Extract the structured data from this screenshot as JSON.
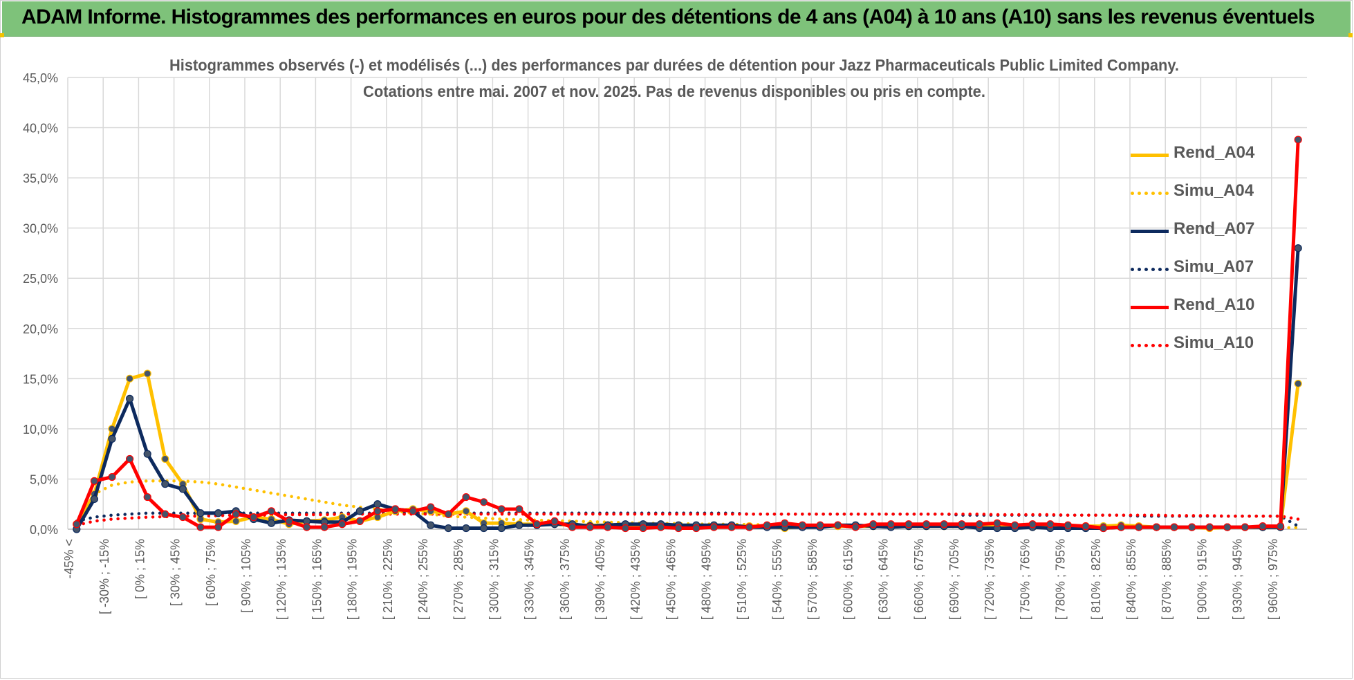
{
  "banner": {
    "title": "ADAM Informe. Histogrammes des performances en euros pour des détentions de 4 ans (A04) à 10 ans (A10) sans les revenus éventuels"
  },
  "colors": {
    "banner_bg": "#7ec27a",
    "A04": "#FFC000",
    "A07": "#0D2A5E",
    "A10": "#FF0000",
    "grid": "#d9d9d9",
    "axis_text": "#595959"
  },
  "chart_data": {
    "type": "line",
    "title_line1": "Histogrammes observés (-) et modélisés (...) des performances par durées de détention pour Jazz Pharmaceuticals Public Limited Company.",
    "title_line2": "Cotations entre mai. 2007 et nov. 2025.  Pas de revenus disponibles ou pris en compte.",
    "ylim": [
      0,
      45
    ],
    "yticks": [
      "0,0%",
      "5,0%",
      "10,0%",
      "15,0%",
      "20,0%",
      "25,0%",
      "30,0%",
      "35,0%",
      "40,0%",
      "45,0%"
    ],
    "categories_labeled": [
      "-45% <",
      "[ -30% ; -15%",
      "[ 0% ; 15%",
      "[ 30% ; 45%",
      "[ 60% ; 75%",
      "[ 90% ; 105%",
      "[ 120% ; 135%",
      "[ 150% ; 165%",
      "[ 180% ; 195%",
      "[ 210% ; 225%",
      "[ 240% ; 255%",
      "[ 270% ; 285%",
      "[ 300% ; 315%",
      "[ 330% ; 345%",
      "[ 360% ; 375%",
      "[ 390% ; 405%",
      "[ 420% ; 435%",
      "[ 450% ; 465%",
      "[ 480% ; 495%",
      "[ 510% ; 525%",
      "[ 540% ; 555%",
      "[ 570% ; 585%",
      "[ 600% ; 615%",
      "[ 630% ; 645%",
      "[ 660% ; 675%",
      "[ 690% ; 705%",
      "[ 720% ; 735%",
      "[ 750% ; 765%",
      "[ 780% ; 795%",
      "[ 810% ; 825%",
      "[ 840% ; 855%",
      "[ 870% ; 885%",
      "[ 900% ; 915%",
      "[ 930% ; 945%",
      "[ 960% ; 975%"
    ],
    "n_points": 70,
    "legend_position": "top-right",
    "grid": true,
    "series": [
      {
        "name": "Rend_A04",
        "style": "solid",
        "color": "#FFC000",
        "values": [
          0.5,
          3.5,
          10.0,
          15.0,
          15.5,
          7.0,
          4.5,
          1.0,
          0.7,
          0.8,
          1.2,
          1.0,
          0.5,
          0.8,
          0.9,
          1.2,
          0.8,
          1.2,
          1.8,
          2.0,
          1.8,
          1.5,
          1.8,
          0.6,
          0.6,
          0.5,
          0.5,
          0.5,
          0.4,
          0.4,
          0.4,
          0.3,
          0.3,
          0.3,
          0.3,
          0.3,
          0.3,
          0.3,
          0.3,
          0.3,
          0.1,
          0.3,
          0.3,
          0.3,
          0.3,
          0.3,
          0.3,
          0.3,
          0.3,
          0.3,
          0.3,
          0.3,
          0.3,
          0.3,
          0.2,
          0.3,
          0.3,
          0.3,
          0.3,
          0.4,
          0.3,
          0.2,
          0.2,
          0.2,
          0.1,
          0.2,
          0.2,
          0.2,
          0.2,
          14.5
        ]
      },
      {
        "name": "Simu_A04",
        "style": "dotted",
        "color": "#FFC000",
        "values": [
          0.3,
          3.5,
          4.4,
          4.7,
          4.8,
          4.8,
          4.8,
          4.7,
          4.5,
          4.2,
          3.9,
          3.6,
          3.3,
          3.0,
          2.7,
          2.4,
          2.2,
          2.0,
          1.8,
          1.6,
          1.5,
          1.3,
          1.2,
          1.1,
          1.0,
          0.95,
          0.9,
          0.85,
          0.8,
          0.75,
          0.7,
          0.65,
          0.6,
          0.57,
          0.55,
          0.52,
          0.5,
          0.48,
          0.46,
          0.44,
          0.42,
          0.4,
          0.38,
          0.36,
          0.34,
          0.33,
          0.32,
          0.31,
          0.3,
          0.29,
          0.28,
          0.27,
          0.26,
          0.25,
          0.24,
          0.23,
          0.22,
          0.21,
          0.2,
          0.2,
          0.19,
          0.18,
          0.18,
          0.17,
          0.17,
          0.16,
          0.16,
          0.15,
          0.15,
          0.15
        ]
      },
      {
        "name": "Rend_A07",
        "style": "solid",
        "color": "#0D2A5E",
        "values": [
          0.0,
          3.0,
          9.0,
          13.0,
          7.5,
          4.5,
          4.0,
          1.6,
          1.6,
          1.8,
          1.0,
          0.6,
          0.9,
          0.8,
          0.7,
          0.7,
          1.8,
          2.5,
          2.0,
          1.8,
          0.4,
          0.1,
          0.1,
          0.1,
          0.1,
          0.4,
          0.4,
          0.5,
          0.5,
          0.3,
          0.4,
          0.5,
          0.5,
          0.5,
          0.4,
          0.4,
          0.4,
          0.4,
          0.2,
          0.2,
          0.2,
          0.2,
          0.2,
          0.4,
          0.4,
          0.3,
          0.2,
          0.3,
          0.3,
          0.3,
          0.3,
          0.1,
          0.1,
          0.1,
          0.2,
          0.1,
          0.1,
          0.1,
          0.1,
          0.2,
          0.2,
          0.2,
          0.2,
          0.2,
          0.2,
          0.2,
          0.2,
          0.2,
          0.2,
          28.0
        ]
      },
      {
        "name": "Simu_A07",
        "style": "dotted",
        "color": "#0D2A5E",
        "values": [
          0.8,
          1.2,
          1.4,
          1.5,
          1.6,
          1.6,
          1.6,
          1.6,
          1.6,
          1.6,
          1.6,
          1.6,
          1.6,
          1.6,
          1.6,
          1.6,
          1.6,
          1.6,
          1.6,
          1.6,
          1.6,
          1.6,
          1.6,
          1.6,
          1.6,
          1.6,
          1.6,
          1.6,
          1.6,
          1.6,
          1.6,
          1.6,
          1.6,
          1.6,
          1.6,
          1.6,
          1.6,
          1.6,
          1.5,
          1.5,
          1.5,
          1.5,
          1.5,
          1.5,
          1.5,
          1.5,
          1.5,
          1.5,
          1.5,
          1.5,
          1.4,
          1.4,
          1.4,
          1.4,
          1.4,
          1.4,
          1.4,
          1.4,
          1.4,
          1.4,
          1.3,
          1.3,
          1.3,
          1.3,
          1.3,
          1.3,
          1.3,
          1.3,
          1.3,
          0.3
        ]
      },
      {
        "name": "Rend_A10",
        "style": "solid",
        "color": "#FF0000",
        "values": [
          0.5,
          4.8,
          5.2,
          7.0,
          3.2,
          1.5,
          1.2,
          0.2,
          0.2,
          1.5,
          1.2,
          1.8,
          0.8,
          0.2,
          0.2,
          0.5,
          0.8,
          1.8,
          2.0,
          1.8,
          2.2,
          1.5,
          3.2,
          2.7,
          2.0,
          2.0,
          0.5,
          0.8,
          0.2,
          0.2,
          0.2,
          0.1,
          0.1,
          0.2,
          0.1,
          0.1,
          0.2,
          0.2,
          0.2,
          0.4,
          0.6,
          0.4,
          0.4,
          0.4,
          0.2,
          0.5,
          0.5,
          0.5,
          0.5,
          0.5,
          0.5,
          0.5,
          0.6,
          0.4,
          0.5,
          0.5,
          0.4,
          0.3,
          0.1,
          0.2,
          0.2,
          0.2,
          0.2,
          0.2,
          0.2,
          0.2,
          0.2,
          0.3,
          0.3,
          38.8
        ]
      },
      {
        "name": "Simu_A10",
        "style": "dotted",
        "color": "#FF0000",
        "values": [
          0.4,
          0.8,
          1.0,
          1.1,
          1.2,
          1.25,
          1.3,
          1.3,
          1.35,
          1.4,
          1.4,
          1.4,
          1.45,
          1.45,
          1.45,
          1.5,
          1.5,
          1.5,
          1.5,
          1.5,
          1.5,
          1.5,
          1.5,
          1.5,
          1.5,
          1.5,
          1.5,
          1.5,
          1.5,
          1.5,
          1.5,
          1.5,
          1.5,
          1.5,
          1.5,
          1.5,
          1.5,
          1.5,
          1.5,
          1.5,
          1.5,
          1.5,
          1.5,
          1.5,
          1.5,
          1.5,
          1.5,
          1.5,
          1.5,
          1.5,
          1.5,
          1.5,
          1.45,
          1.45,
          1.45,
          1.45,
          1.4,
          1.4,
          1.4,
          1.4,
          1.4,
          1.4,
          1.35,
          1.35,
          1.35,
          1.3,
          1.3,
          1.3,
          1.3,
          1.0
        ]
      }
    ]
  }
}
